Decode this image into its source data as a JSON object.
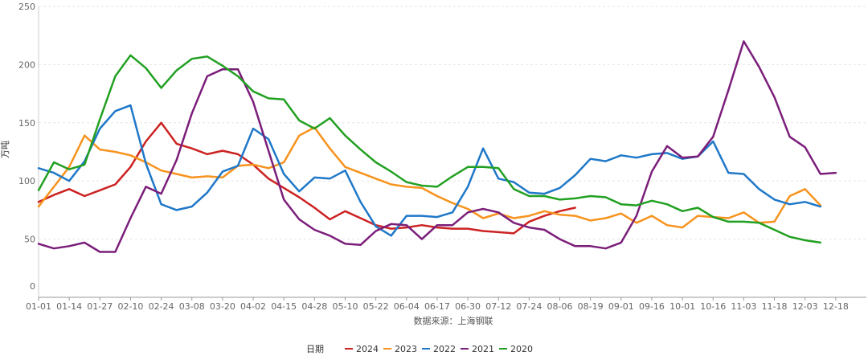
{
  "chart_data": {
    "type": "line",
    "title": "",
    "ylabel": "万吨",
    "xlabel": "数据来源：上海钢联",
    "legend_title": "日期",
    "legend_position": "bottom-center",
    "grid": true,
    "ylim": [
      0,
      250
    ],
    "yticks": [
      0,
      50,
      100,
      150,
      200,
      250
    ],
    "x_tick_labels": [
      "01-01",
      "01-14",
      "01-27",
      "02-10",
      "02-24",
      "03-08",
      "03-20",
      "04-02",
      "04-15",
      "04-28",
      "05-10",
      "05-22",
      "06-04",
      "06-17",
      "06-30",
      "07-12",
      "07-24",
      "08-06",
      "08-19",
      "09-01",
      "09-16",
      "10-01",
      "10-16",
      "11-03",
      "11-18",
      "12-03",
      "12-18"
    ],
    "x_tick_positions": [
      0,
      2,
      4,
      6,
      8,
      10,
      12,
      14,
      16,
      18,
      20,
      22,
      24,
      26,
      28,
      30,
      32,
      34,
      36,
      38,
      40,
      42,
      44,
      46,
      48,
      50,
      52
    ],
    "x_max": 54,
    "series": [
      {
        "name": "2024",
        "color": "#cc2222",
        "values": [
          82,
          88,
          93,
          87,
          92,
          97,
          112,
          134,
          150,
          132,
          128,
          123,
          126,
          123,
          114,
          102,
          94,
          86,
          77,
          67,
          74,
          68,
          62,
          59,
          60,
          62,
          60,
          59,
          59,
          57,
          56,
          55,
          65,
          70,
          74,
          77
        ]
      },
      {
        "name": "2023",
        "color": "#f7931e",
        "values": [
          78,
          95,
          112,
          139,
          127,
          125,
          122,
          116,
          109,
          106,
          103,
          104,
          103,
          113,
          114,
          111,
          116,
          139,
          146,
          128,
          112,
          107,
          102,
          97,
          95,
          94,
          87,
          81,
          76,
          68,
          72,
          68,
          70,
          74,
          71,
          70,
          66,
          68,
          72,
          64,
          70,
          62,
          60,
          70,
          69,
          68,
          73,
          64,
          65,
          87,
          93,
          79
        ]
      },
      {
        "name": "2022",
        "color": "#1f78c8",
        "values": [
          111,
          107,
          100,
          117,
          145,
          160,
          165,
          115,
          80,
          75,
          78,
          90,
          108,
          113,
          145,
          136,
          106,
          91,
          103,
          102,
          109,
          82,
          61,
          53,
          70,
          70,
          69,
          73,
          95,
          128,
          102,
          99,
          90,
          89,
          94,
          105,
          119,
          117,
          122,
          120,
          123,
          124,
          119,
          121,
          134,
          107,
          106,
          93,
          84,
          80,
          82,
          78
        ]
      },
      {
        "name": "2021",
        "color": "#7b1e7a",
        "values": [
          46,
          42,
          44,
          47,
          39,
          39,
          68,
          95,
          89,
          118,
          158,
          190,
          196,
          196,
          168,
          126,
          84,
          67,
          58,
          53,
          46,
          45,
          57,
          63,
          62,
          50,
          62,
          62,
          73,
          76,
          73,
          64,
          60,
          58,
          50,
          44,
          44,
          42,
          47,
          70,
          108,
          130,
          120,
          121,
          138,
          178,
          220,
          198,
          172,
          138,
          129,
          106,
          107
        ]
      },
      {
        "name": "2020",
        "color": "#22a022",
        "values": [
          92,
          116,
          110,
          114,
          153,
          190,
          208,
          197,
          180,
          195,
          205,
          207,
          199,
          190,
          177,
          171,
          170,
          152,
          145,
          154,
          139,
          127,
          116,
          108,
          99,
          96,
          95,
          104,
          112,
          112,
          111,
          93,
          87,
          87,
          84,
          85,
          87,
          86,
          80,
          79,
          83,
          80,
          74,
          77,
          69,
          65,
          65,
          64,
          58,
          52,
          49,
          47
        ]
      }
    ]
  }
}
